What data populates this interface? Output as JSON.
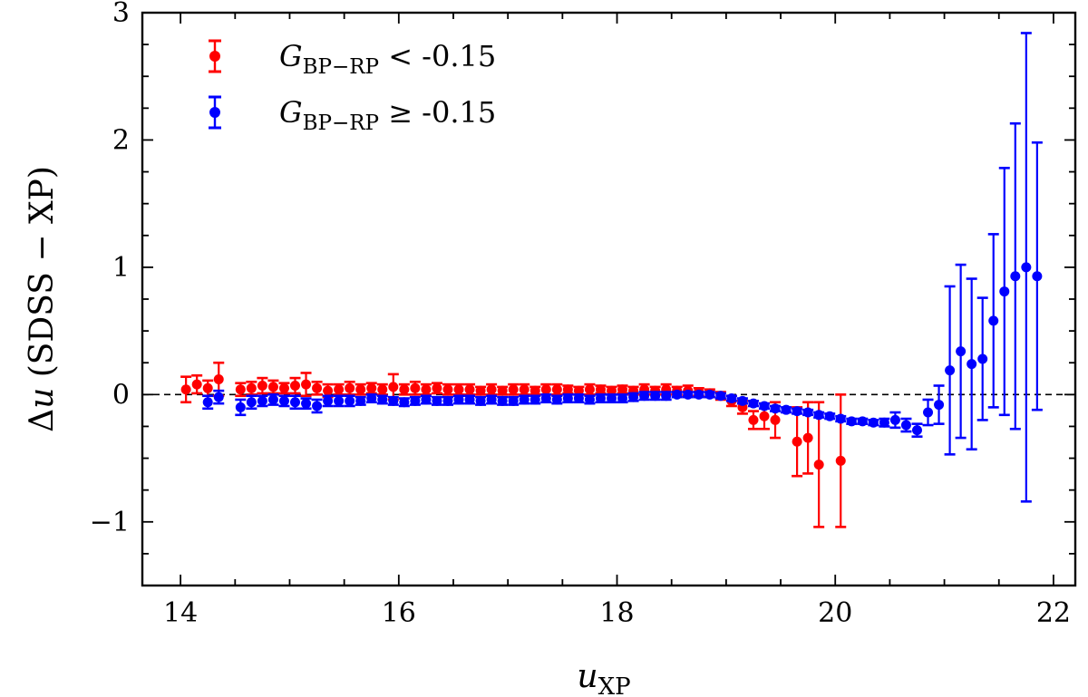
{
  "chart_data": {
    "type": "scatter",
    "title": "",
    "xlabel": "u",
    "xlabel_sub": "XP",
    "ylabel_prefix": "Δ",
    "ylabel_var": "u",
    "ylabel_rest": " (SDSS − XP)",
    "xlim": [
      13.65,
      22.2
    ],
    "ylim": [
      -1.5,
      3.0
    ],
    "xticks": [
      14,
      16,
      18,
      20,
      22
    ],
    "xtick_labels": [
      "14",
      "16",
      "18",
      "20",
      "22"
    ],
    "yticks": [
      -1,
      0,
      1,
      2,
      3
    ],
    "ytick_labels": [
      "−1",
      "0",
      "1",
      "2",
      "3"
    ],
    "reference_line": 0,
    "legend_position": "top-left",
    "series": [
      {
        "name": "G_BP−RP < -0.15",
        "legend_var": "G",
        "legend_sub": "BP−RP",
        "legend_rel": " < -0.15",
        "color": "#ff0000",
        "x": [
          14.05,
          14.15,
          14.25,
          14.35,
          14.55,
          14.65,
          14.75,
          14.85,
          14.95,
          15.05,
          15.15,
          15.25,
          15.35,
          15.45,
          15.55,
          15.65,
          15.75,
          15.85,
          15.95,
          16.05,
          16.15,
          16.25,
          16.35,
          16.45,
          16.55,
          16.65,
          16.75,
          16.85,
          16.95,
          17.05,
          17.15,
          17.25,
          17.35,
          17.45,
          17.55,
          17.65,
          17.75,
          17.85,
          17.95,
          18.05,
          18.15,
          18.25,
          18.35,
          18.45,
          18.55,
          18.65,
          18.75,
          18.85,
          18.95,
          19.05,
          19.15,
          19.25,
          19.35,
          19.45,
          19.65,
          19.75,
          19.85,
          20.05
        ],
        "y": [
          0.04,
          0.08,
          0.05,
          0.12,
          0.04,
          0.05,
          0.07,
          0.06,
          0.05,
          0.07,
          0.08,
          0.05,
          0.03,
          0.04,
          0.05,
          0.04,
          0.05,
          0.04,
          0.06,
          0.04,
          0.05,
          0.04,
          0.05,
          0.04,
          0.04,
          0.04,
          0.03,
          0.04,
          0.03,
          0.04,
          0.04,
          0.03,
          0.04,
          0.04,
          0.04,
          0.03,
          0.04,
          0.04,
          0.03,
          0.04,
          0.03,
          0.04,
          0.03,
          0.04,
          0.03,
          0.03,
          0.02,
          0.01,
          -0.01,
          -0.05,
          -0.1,
          -0.2,
          -0.17,
          -0.2,
          -0.37,
          -0.34,
          -0.55,
          -0.52
        ],
        "err": [
          0.1,
          0.07,
          0.06,
          0.13,
          0.05,
          0.05,
          0.06,
          0.05,
          0.04,
          0.06,
          0.09,
          0.05,
          0.05,
          0.04,
          0.05,
          0.04,
          0.04,
          0.04,
          0.1,
          0.04,
          0.05,
          0.04,
          0.04,
          0.04,
          0.04,
          0.04,
          0.03,
          0.04,
          0.03,
          0.04,
          0.04,
          0.03,
          0.04,
          0.04,
          0.03,
          0.03,
          0.04,
          0.03,
          0.03,
          0.03,
          0.03,
          0.04,
          0.03,
          0.04,
          0.03,
          0.04,
          0.03,
          0.03,
          0.03,
          0.04,
          0.05,
          0.07,
          0.1,
          0.14,
          0.27,
          0.28,
          0.49,
          0.52
        ]
      },
      {
        "name": "G_BP−RP ≥ -0.15",
        "legend_var": "G",
        "legend_sub": "BP−RP",
        "legend_rel": " ≥ -0.15",
        "color": "#0000ff",
        "x": [
          14.25,
          14.35,
          14.55,
          14.65,
          14.75,
          14.85,
          14.95,
          15.05,
          15.15,
          15.25,
          15.35,
          15.45,
          15.55,
          15.65,
          15.75,
          15.85,
          15.95,
          16.05,
          16.15,
          16.25,
          16.35,
          16.45,
          16.55,
          16.65,
          16.75,
          16.85,
          16.95,
          17.05,
          17.15,
          17.25,
          17.35,
          17.45,
          17.55,
          17.65,
          17.75,
          17.85,
          17.95,
          18.05,
          18.15,
          18.25,
          18.35,
          18.45,
          18.55,
          18.65,
          18.75,
          18.85,
          18.95,
          19.05,
          19.15,
          19.25,
          19.35,
          19.45,
          19.55,
          19.65,
          19.75,
          19.85,
          19.95,
          20.05,
          20.15,
          20.25,
          20.35,
          20.45,
          20.55,
          20.65,
          20.75,
          20.85,
          20.95,
          21.05,
          21.15,
          21.25,
          21.35,
          21.45,
          21.55,
          21.65,
          21.75,
          21.85
        ],
        "y": [
          -0.06,
          -0.02,
          -0.1,
          -0.06,
          -0.05,
          -0.04,
          -0.05,
          -0.06,
          -0.07,
          -0.09,
          -0.05,
          -0.05,
          -0.05,
          -0.05,
          -0.03,
          -0.04,
          -0.05,
          -0.06,
          -0.05,
          -0.04,
          -0.05,
          -0.05,
          -0.04,
          -0.04,
          -0.05,
          -0.04,
          -0.05,
          -0.05,
          -0.04,
          -0.04,
          -0.03,
          -0.04,
          -0.03,
          -0.03,
          -0.04,
          -0.03,
          -0.03,
          -0.03,
          -0.02,
          -0.01,
          -0.01,
          -0.01,
          0.0,
          0.0,
          0.0,
          0.0,
          -0.01,
          -0.03,
          -0.05,
          -0.07,
          -0.09,
          -0.11,
          -0.12,
          -0.13,
          -0.14,
          -0.16,
          -0.17,
          -0.19,
          -0.21,
          -0.21,
          -0.22,
          -0.22,
          -0.2,
          -0.24,
          -0.28,
          -0.14,
          -0.08,
          0.19,
          0.34,
          0.24,
          0.28,
          0.58,
          0.81,
          0.93,
          1.0,
          0.93
        ],
        "err": [
          0.05,
          0.05,
          0.06,
          0.05,
          0.04,
          0.04,
          0.04,
          0.05,
          0.04,
          0.05,
          0.04,
          0.04,
          0.04,
          0.03,
          0.03,
          0.03,
          0.03,
          0.03,
          0.03,
          0.03,
          0.03,
          0.03,
          0.03,
          0.03,
          0.03,
          0.03,
          0.03,
          0.03,
          0.03,
          0.03,
          0.03,
          0.03,
          0.03,
          0.03,
          0.03,
          0.03,
          0.03,
          0.03,
          0.03,
          0.03,
          0.03,
          0.03,
          0.02,
          0.02,
          0.02,
          0.02,
          0.02,
          0.02,
          0.02,
          0.02,
          0.02,
          0.02,
          0.02,
          0.02,
          0.02,
          0.02,
          0.02,
          0.02,
          0.02,
          0.02,
          0.02,
          0.03,
          0.06,
          0.05,
          0.05,
          0.1,
          0.15,
          0.66,
          0.68,
          0.67,
          0.48,
          0.68,
          0.97,
          1.2,
          1.84,
          1.05
        ]
      }
    ]
  }
}
